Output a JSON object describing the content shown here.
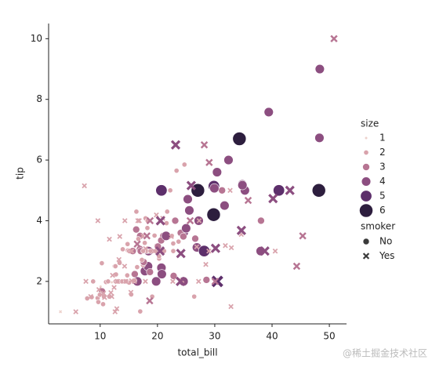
{
  "chart_data": {
    "type": "scatter",
    "xlabel": "total_bill",
    "ylabel": "tip",
    "xlim": [
      1,
      53
    ],
    "ylim": [
      0.6,
      10.5
    ],
    "xticks": [
      10,
      20,
      30,
      40,
      50
    ],
    "yticks": [
      2,
      4,
      6,
      8,
      10
    ],
    "size_legend": {
      "title": "size",
      "levels": [
        1,
        2,
        3,
        4,
        5,
        6
      ],
      "colors": [
        "#edd1cb",
        "#d9a3ac",
        "#b77593",
        "#8c4e80",
        "#5d2f6b",
        "#2d1e3e"
      ]
    },
    "marker_legend_title": "smoker",
    "series": [
      {
        "name": "No",
        "marker": "circle",
        "x": [
          16.99,
          10.34,
          21.01,
          23.68,
          24.59,
          25.29,
          8.77,
          26.88,
          15.04,
          14.78,
          10.27,
          35.26,
          15.42,
          18.43,
          14.83,
          21.58,
          10.33,
          16.29,
          16.97,
          20.65,
          17.92,
          20.29,
          15.77,
          39.42,
          19.82,
          17.81,
          13.37,
          12.69,
          21.7,
          19.65,
          9.55,
          18.35,
          15.06,
          20.69,
          17.78,
          24.06,
          16.31,
          16.93,
          18.69,
          31.27,
          16.04,
          17.46,
          13.94,
          9.68,
          30.4,
          18.29,
          22.23,
          32.4,
          28.55,
          18.04,
          12.54,
          10.29,
          34.81,
          9.94,
          25.56,
          19.49,
          38.01,
          26.41,
          48.27,
          13.81,
          11.02,
          17.59,
          20.08,
          16.45,
          20.23,
          12.02,
          17.07,
          14.73,
          10.51,
          27.2,
          22.76,
          17.29,
          16.66,
          10.07,
          34.83,
          13.03,
          18.28,
          24.71,
          21.16,
          22.49,
          16.32,
          22.75,
          48.33,
          29.85,
          48.17,
          25,
          13.39,
          16.49,
          21.5,
          12.66,
          20.76,
          31.71,
          20.69,
          34.3,
          27.05,
          29.8,
          41.19,
          26.59,
          38.07,
          23.1,
          11.59,
          7.74,
          18.78,
          8.52,
          14.52,
          11.38,
          22.82,
          19.08,
          20.27,
          10.65,
          12.76,
          15.98,
          15.69,
          18.24,
          24.55,
          19.77,
          28.15,
          29.93,
          24.52,
          17.51,
          23.33
        ],
        "values": [
          1.01,
          1.66,
          3.5,
          3.31,
          3.61,
          4.71,
          2,
          3.12,
          1.96,
          3.23,
          1.71,
          5,
          1.57,
          3,
          3.02,
          3.92,
          1.67,
          3.71,
          3.5,
          3.35,
          4.08,
          2.75,
          2.23,
          7.58,
          3.18,
          2.34,
          2,
          2,
          4.3,
          3,
          1.45,
          2.5,
          3,
          2.45,
          3.27,
          3.6,
          2,
          3.07,
          2.31,
          5,
          2.24,
          2.54,
          3.06,
          1.32,
          5.6,
          3,
          5,
          6,
          2.05,
          3,
          2.5,
          2.6,
          5.2,
          1.56,
          4.34,
          3.51,
          3,
          1.5,
          6.73,
          2,
          1.98,
          2.64,
          3.15,
          2.47,
          2.01,
          1.97,
          3,
          2.2,
          1.25,
          4,
          3,
          2.71,
          3.4,
          1.83,
          5.17,
          2,
          4,
          5.85,
          3,
          3.5,
          4.3,
          3.25,
          9,
          5.14,
          5,
          3.75,
          2.61,
          2,
          3.5,
          2.5,
          2.24,
          4.5,
          5,
          6.7,
          5,
          4.2,
          5,
          3.41,
          4,
          4,
          1.5,
          1.44,
          3,
          1.48,
          2,
          2,
          2.18,
          1.5,
          2.83,
          1.5,
          2.23,
          2.03,
          3,
          3.76,
          2,
          2,
          3,
          5.07,
          3.48,
          3,
          5.65
        ],
        "sizes": [
          2,
          3,
          3,
          2,
          4,
          4,
          2,
          4,
          2,
          2,
          2,
          4,
          2,
          4,
          2,
          2,
          3,
          3,
          3,
          3,
          2,
          2,
          2,
          4,
          2,
          4,
          2,
          2,
          2,
          2,
          2,
          4,
          2,
          4,
          2,
          3,
          3,
          3,
          3,
          3,
          3,
          2,
          2,
          2,
          4,
          2,
          2,
          4,
          3,
          2,
          2,
          2,
          4,
          2,
          4,
          2,
          4,
          2,
          4,
          2,
          2,
          3,
          3,
          2,
          2,
          1,
          3,
          2,
          2,
          4,
          2,
          2,
          2,
          1,
          4,
          2,
          2,
          2,
          2,
          2,
          2,
          2,
          4,
          5,
          6,
          4,
          2,
          4,
          4,
          2,
          4,
          4,
          5,
          6,
          6,
          6,
          5,
          3,
          3,
          3,
          2,
          2,
          2,
          2,
          2,
          2,
          3,
          2,
          2,
          2,
          2,
          2,
          3,
          2,
          4,
          4,
          5,
          4,
          3,
          2,
          2
        ]
      },
      {
        "name": "Yes",
        "marker": "x",
        "x": [
          50.81,
          23.17,
          28.17,
          7.25,
          3.07,
          5.75,
          44.3,
          45.35,
          40.55,
          38.73,
          32.83,
          24.27,
          28.97,
          30.46,
          43.11,
          25.89,
          28.44,
          27.28,
          32.68,
          34.63,
          40.17,
          30.06,
          12.03,
          12.9,
          13.42,
          15.48,
          16.58,
          7.51,
          10.59,
          12.16,
          15.36,
          20.45,
          14.31,
          19.81,
          22.67,
          17.47,
          24.01,
          11.61,
          10.77,
          15.53,
          12.6,
          35.83,
          29.03,
          27.18,
          22.42,
          20.92,
          16,
          19.44,
          9.6,
          25.71,
          13,
          18.71,
          17.92,
          24.08,
          15.38,
          13.28,
          18.15,
          30.14,
          20.53,
          16.47,
          26.86,
          8.35,
          18.64,
          11.87,
          9.78,
          14.26,
          15.95,
          12.43,
          31.85,
          16.82,
          32.9,
          17.89,
          14.48,
          34.65
        ],
        "values": [
          10,
          6.5,
          6.5,
          5.15,
          1,
          1,
          2.5,
          3.5,
          3,
          3,
          1.17,
          2.03,
          3,
          2,
          5,
          5.16,
          2.56,
          4,
          5,
          3.55,
          4.73,
          2,
          1.5,
          1.1,
          3.48,
          2.02,
          4,
          2,
          1.61,
          2.2,
          1.64,
          3,
          4,
          4.19,
          2,
          3.5,
          2,
          3.39,
          1.47,
          3,
          1,
          4.67,
          5.92,
          2,
          3.48,
          4.08,
          2,
          3,
          4,
          4,
          2,
          4,
          3.08,
          2.92,
          3,
          2.72,
          3.5,
          3.09,
          4,
          3.23,
          3.14,
          1.5,
          1.36,
          1.63,
          1.73,
          2.5,
          2,
          1.8,
          3.18,
          4,
          3.11,
          2,
          2,
          3.68
        ],
        "sizes": [
          3,
          4,
          3,
          2,
          1,
          2,
          3,
          3,
          2,
          4,
          2,
          2,
          2,
          5,
          4,
          4,
          2,
          2,
          2,
          2,
          4,
          3,
          2,
          2,
          2,
          2,
          2,
          2,
          2,
          2,
          2,
          4,
          2,
          2,
          2,
          2,
          4,
          2,
          2,
          2,
          2,
          3,
          3,
          2,
          2,
          2,
          2,
          2,
          2,
          3,
          2,
          3,
          2,
          4,
          2,
          2,
          3,
          4,
          4,
          3,
          2,
          2,
          3,
          2,
          2,
          2,
          2,
          2,
          2,
          2,
          2,
          2,
          2,
          4
        ]
      }
    ],
    "watermark": "@稀土掘金技术社区"
  }
}
